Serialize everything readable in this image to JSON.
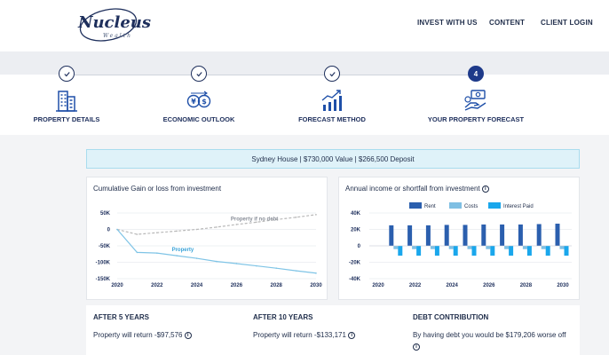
{
  "header": {
    "logo_text": "Nucleus",
    "logo_sub": "Wealth",
    "nav": [
      "INVEST WITH US",
      "CONTENT",
      "CLIENT LOGIN"
    ]
  },
  "steps": [
    {
      "label": "PROPERTY DETAILS",
      "state": "done",
      "icon": "building-icon"
    },
    {
      "label": "ECONOMIC OUTLOOK",
      "state": "done",
      "icon": "currency-exchange-icon"
    },
    {
      "label": "FORECAST METHOD",
      "state": "done",
      "icon": "chart-growth-icon"
    },
    {
      "label": "YOUR PROPERTY FORECAST",
      "state": "active",
      "number": "4",
      "icon": "hand-money-icon"
    }
  ],
  "banner": {
    "text": "Sydney House  |  $730,000 Value  |  $266,500 Deposit"
  },
  "colors": {
    "navy": "#1e3a8a",
    "rent": "#2b5fae",
    "costs": "#7fbfe3",
    "interest": "#1aa7ec",
    "line": "#7fc4e6",
    "dashed": "#b9b9b9"
  },
  "chart_data": [
    {
      "type": "line",
      "title": "Cumulative Gain or loss from investment",
      "x": [
        2020,
        2021,
        2022,
        2023,
        2024,
        2025,
        2026,
        2027,
        2028,
        2029,
        2030
      ],
      "series": [
        {
          "name": "Property if no debt",
          "style": "dashed",
          "values": [
            0,
            -15000,
            -10000,
            -5000,
            0,
            7000,
            15000,
            22000,
            30000,
            37000,
            45000
          ]
        },
        {
          "name": "Property",
          "style": "solid",
          "values": [
            0,
            -70000,
            -72000,
            -80000,
            -88000,
            -97576,
            -104000,
            -111000,
            -118000,
            -126000,
            -133171
          ]
        }
      ],
      "yticks": [
        -150000,
        -100000,
        -50000,
        0,
        50000
      ],
      "ytick_labels": [
        "-150K",
        "-100K",
        "-50K",
        "0",
        "50K"
      ],
      "xtick_labels": [
        "2020",
        "2022",
        "2024",
        "2026",
        "2028",
        "2030"
      ],
      "ylim": [
        -150000,
        50000
      ]
    },
    {
      "type": "bar",
      "title": "Annual income or shortfall from investment",
      "categories": [
        "2021",
        "2022",
        "2023",
        "2024",
        "2025",
        "2026",
        "2027",
        "2028",
        "2029",
        "2030"
      ],
      "series": [
        {
          "name": "Rent",
          "values": [
            25000,
            25000,
            25000,
            25500,
            25500,
            26000,
            26000,
            26000,
            26500,
            27000
          ]
        },
        {
          "name": "Costs",
          "values": [
            -4000,
            -4000,
            -4000,
            -4000,
            -4000,
            -4000,
            -4000,
            -4000,
            -4000,
            -4000
          ]
        },
        {
          "name": "Interest Paid",
          "values": [
            -12000,
            -12000,
            -12000,
            -12000,
            -12000,
            -12000,
            -12000,
            -12000,
            -12000,
            -12000
          ]
        }
      ],
      "yticks": [
        -40000,
        -20000,
        0,
        20000,
        40000
      ],
      "ytick_labels": [
        "-40K",
        "-20K",
        "0",
        "20K",
        "40K"
      ],
      "xtick_labels": [
        "2020",
        "2022",
        "2024",
        "2026",
        "2028",
        "2030"
      ],
      "ylim": [
        -40000,
        40000
      ]
    }
  ],
  "stats": [
    {
      "title": "AFTER 5 YEARS",
      "text": "Property will return -$97,576"
    },
    {
      "title": "AFTER 10 YEARS",
      "text": "Property will return -$133,171"
    },
    {
      "title": "DEBT CONTRIBUTION",
      "text": "By having debt you would be $179,206 worse off"
    }
  ]
}
